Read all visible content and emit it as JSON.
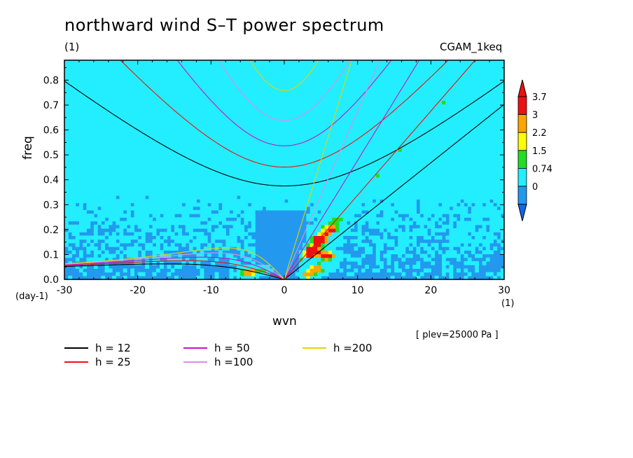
{
  "page": {
    "title": "northward wind S–T power spectrum",
    "units_left": "(1)",
    "case_name": "CGAM_1keq",
    "plev_note": "[ plev=25000 Pa ]",
    "y_unit": "(day-1)",
    "x_unit": "(1)"
  },
  "chart_data": {
    "type": "heatmap",
    "xlabel": "wvn",
    "ylabel": "freq",
    "xlim": [
      -30,
      30
    ],
    "ylim": [
      0,
      0.88
    ],
    "x_ticks": [
      "-30",
      "-20",
      "-10",
      "0",
      "10",
      "20",
      "30"
    ],
    "x_tick_values": [
      -30,
      -20,
      -10,
      0,
      10,
      20,
      30
    ],
    "y_ticks": [
      "0.0",
      "0.1",
      "0.2",
      "0.3",
      "0.4",
      "0.5",
      "0.6",
      "0.7",
      "0.8"
    ],
    "y_tick_values": [
      0,
      0.1,
      0.2,
      0.3,
      0.4,
      0.5,
      0.6,
      0.7,
      0.8
    ],
    "colorbar": {
      "labels": [
        "3.7",
        "3",
        "2.2",
        "1.5",
        "0.74",
        "0"
      ],
      "colors": [
        "#ee1111",
        "#ffa500",
        "#ffff00",
        "#22dd22",
        "#22eeff",
        "#2299ee"
      ],
      "under_color": "#1166ee",
      "over_color": "#ee1111"
    },
    "field_colors": {
      "base": "#2299ee",
      "level1": "#22eeff",
      "level2": "#22dd22",
      "level3": "#ffff00",
      "level4": "#ffa500",
      "level5": "#ee1111"
    },
    "dispersion_curves": [
      {
        "label": "h = 12",
        "h": 12,
        "color": "#000000"
      },
      {
        "label": "h = 25",
        "h": 25,
        "color": "#ee1111"
      },
      {
        "label": "h = 50",
        "h": 50,
        "color": "#cc11cc"
      },
      {
        "label": "h =100",
        "h": 100,
        "color": "#e08ce0"
      },
      {
        "label": "h =200",
        "h": 200,
        "color": "#e6d200"
      }
    ]
  }
}
